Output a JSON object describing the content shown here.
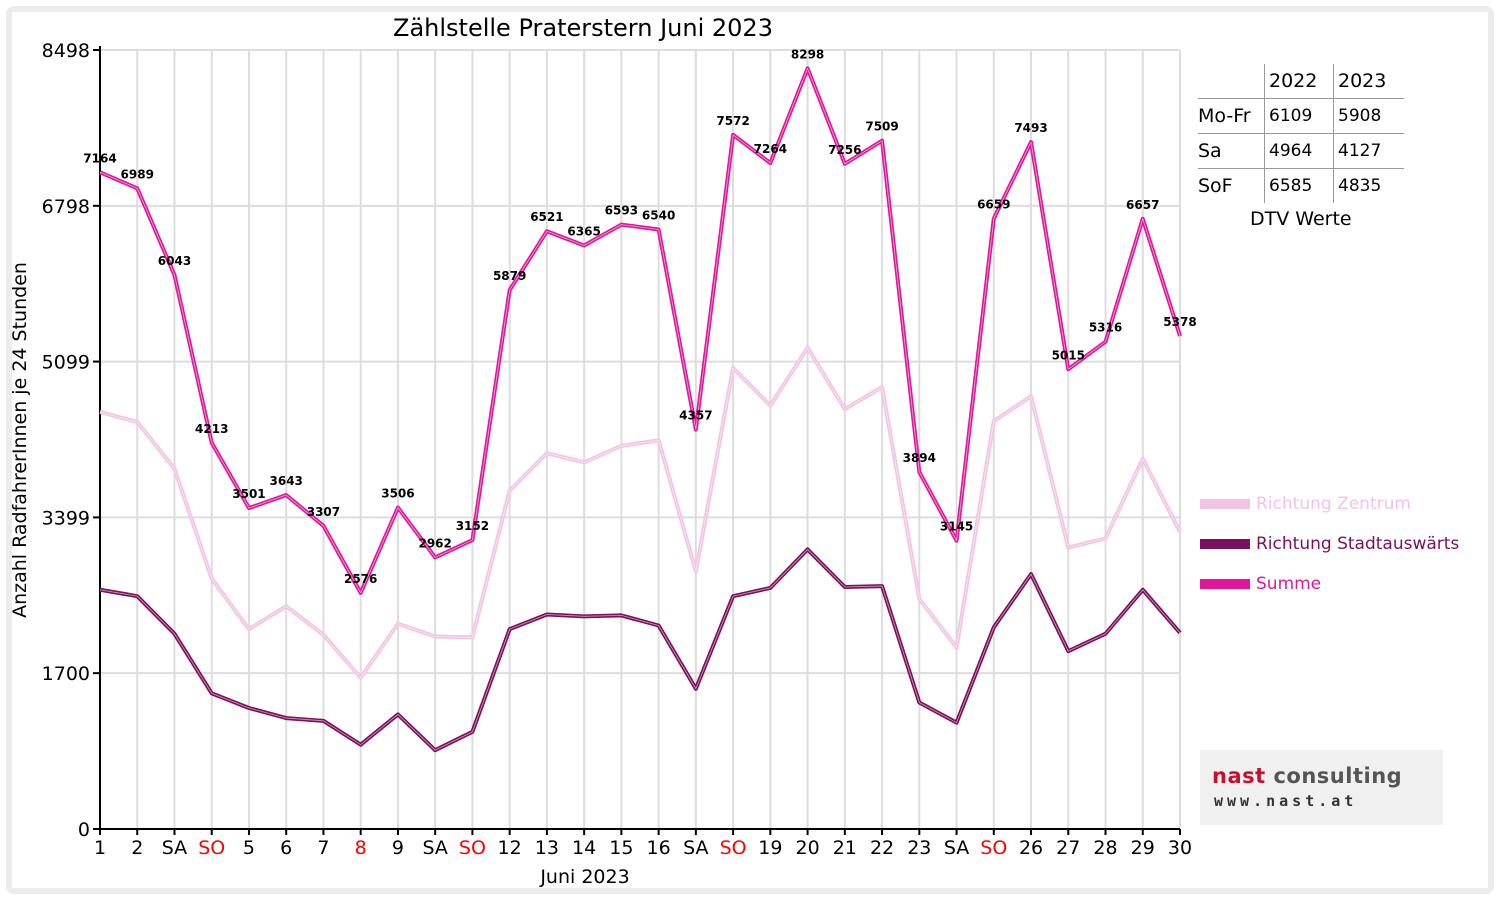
{
  "chart_data": {
    "type": "line",
    "title": "Zählstelle Praterstern Juni 2023",
    "xlabel": "Juni 2023",
    "ylabel": "Anzahl RadfahrerInnen je 24 Stunden",
    "ylim": [
      0,
      8498
    ],
    "yticks": [
      "0",
      "1700",
      "3399",
      "5099",
      "6798",
      "8498"
    ],
    "categories": [
      "1",
      "2",
      "SA",
      "SO",
      "5",
      "6",
      "7",
      "8",
      "9",
      "SA",
      "SO",
      "12",
      "13",
      "14",
      "15",
      "16",
      "SA",
      "SO",
      "19",
      "20",
      "21",
      "22",
      "23",
      "SA",
      "SO",
      "26",
      "27",
      "28",
      "29",
      "30"
    ],
    "red_categories": [
      3,
      7,
      10,
      17,
      24
    ],
    "grid": true,
    "legend_position": "right",
    "series": [
      {
        "name": "Richtung Zentrum",
        "color": "#f2c4e2",
        "values": [
          4550,
          4440,
          3930,
          2730,
          2180,
          2430,
          2120,
          1650,
          2240,
          2100,
          2090,
          3690,
          4100,
          4000,
          4180,
          4240,
          2810,
          5030,
          4620,
          5250,
          4580,
          4820,
          2510,
          1980,
          4450,
          4720,
          3070,
          3170,
          4040,
          3240
        ]
      },
      {
        "name": "Richtung Stadtauswärts",
        "color": "#7d0f5c",
        "values": [
          2610,
          2540,
          2130,
          1480,
          1320,
          1210,
          1180,
          920,
          1250,
          860,
          1060,
          2180,
          2340,
          2320,
          2330,
          2220,
          1530,
          2540,
          2630,
          3050,
          2640,
          2650,
          1380,
          1160,
          2200,
          2780,
          1940,
          2130,
          2610,
          2140
        ]
      },
      {
        "name": "Summe",
        "color": "#e0179c",
        "values": [
          7164,
          6989,
          6043,
          4213,
          3501,
          3643,
          3307,
          2576,
          3506,
          2962,
          3152,
          5879,
          6521,
          6365,
          6593,
          6540,
          4357,
          7572,
          7264,
          8298,
          7256,
          7509,
          3894,
          3145,
          6659,
          7493,
          5015,
          5316,
          6657,
          5378
        ]
      }
    ],
    "data_labels": [
      "7164",
      "6989",
      "6043",
      "4213",
      "3501",
      "3643",
      "3307",
      "2576",
      "3506",
      "2962",
      "3152",
      "5879",
      "6521",
      "6365",
      "6593",
      "6540",
      "4357",
      "7572",
      "7264",
      "8298",
      "7256",
      "7509",
      "3894",
      "3145",
      "6659",
      "7493",
      "5015",
      "5316",
      "6657",
      "5378"
    ]
  },
  "dtv_table": {
    "years": [
      "2022",
      "2023"
    ],
    "rows": [
      {
        "label": "Mo-Fr",
        "v2022": "6109",
        "v2023": "5908"
      },
      {
        "label": "Sa",
        "v2022": "4964",
        "v2023": "4127"
      },
      {
        "label": "SoF",
        "v2022": "6585",
        "v2023": "4835"
      }
    ],
    "caption": "DTV Werte"
  },
  "logo": {
    "name_part1": "nast",
    "name_part2": "consulting",
    "url": "www.nast.at",
    "accent": "#c8102e"
  },
  "colors": {
    "red_label": "#ff0000",
    "grid": "#dddddd",
    "axis": "#000000"
  }
}
